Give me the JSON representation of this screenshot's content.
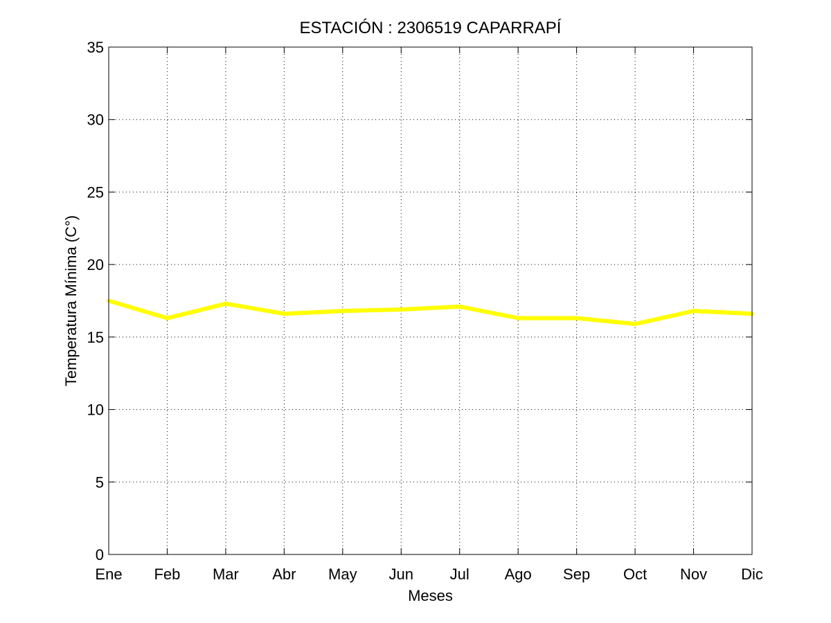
{
  "chart_data": {
    "type": "line",
    "title": "ESTACIÓN : 2306519  CAPARRAPÍ",
    "xlabel": "Meses",
    "ylabel": "Temperatura Mínima (C°)",
    "categories": [
      "Ene",
      "Feb",
      "Mar",
      "Abr",
      "May",
      "Jun",
      "Jul",
      "Ago",
      "Sep",
      "Oct",
      "Nov",
      "Dic"
    ],
    "series": [
      {
        "values": [
          17.5,
          16.3,
          17.3,
          16.6,
          16.8,
          16.9,
          17.1,
          16.3,
          16.3,
          15.9,
          16.8,
          16.6
        ],
        "color": "#ffff00"
      }
    ],
    "ylim": [
      0,
      35
    ],
    "yticks": [
      0,
      5,
      10,
      15,
      20,
      25,
      30,
      35
    ],
    "grid": true,
    "legend": "none"
  }
}
